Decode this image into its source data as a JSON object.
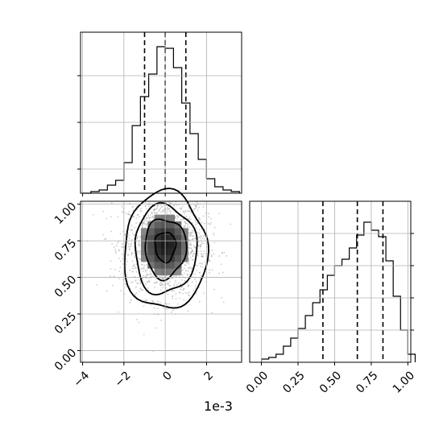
{
  "chart_data": {
    "type": "corner",
    "offset_text": "1e-3",
    "colors": {
      "line": "#000000",
      "grid": "#b0b0b0",
      "density_max": "#000000",
      "density_min": "#ffffff"
    },
    "grid": true,
    "panels": [
      {
        "id": "hist_param0",
        "type": "histogram-step",
        "x_scale": 0.001,
        "xlim": [
          -4.1,
          3.7
        ],
        "ylim": [
          0,
          1
        ],
        "bin_edges": [
          -4.0,
          -3.6,
          -3.2,
          -2.8,
          -2.4,
          -2.0,
          -1.6,
          -1.2,
          -0.8,
          -0.4,
          0.0,
          0.4,
          0.8,
          1.2,
          1.6,
          2.0,
          2.4,
          2.8,
          3.2,
          3.6
        ],
        "counts": [
          0.0,
          0.01,
          0.02,
          0.05,
          0.08,
          0.19,
          0.42,
          0.6,
          0.74,
          0.91,
          0.9,
          0.78,
          0.56,
          0.37,
          0.21,
          0.09,
          0.04,
          0.02,
          0.01
        ],
        "quantiles": [
          -1.0,
          0.0,
          1.0
        ],
        "yticks": [
          0.15,
          0.44,
          0.73
        ]
      },
      {
        "id": "hist_param1",
        "type": "histogram-step",
        "xlim": [
          -0.08,
          1.02
        ],
        "ylim": [
          0,
          1
        ],
        "bin_edges": [
          0.0,
          0.05,
          0.1,
          0.15,
          0.2,
          0.25,
          0.3,
          0.35,
          0.4,
          0.45,
          0.5,
          0.55,
          0.6,
          0.65,
          0.7,
          0.75,
          0.8,
          0.85,
          0.9,
          0.95,
          1.0,
          1.05
        ],
        "counts": [
          0.02,
          0.03,
          0.05,
          0.1,
          0.15,
          0.21,
          0.29,
          0.37,
          0.45,
          0.54,
          0.6,
          0.64,
          0.71,
          0.79,
          0.87,
          0.82,
          0.78,
          0.63,
          0.41,
          0.2,
          0.05
        ],
        "quantiles": [
          0.42,
          0.655,
          0.83
        ],
        "xticks": [
          0.0,
          0.25,
          0.5,
          0.75,
          1.0
        ],
        "xtick_labels": [
          "0.00",
          "0.25",
          "0.50",
          "0.75",
          "1.00"
        ],
        "yticks": [
          0.2,
          0.4,
          0.6,
          0.8
        ]
      },
      {
        "id": "joint",
        "type": "density-2d",
        "x_scale": 0.001,
        "xlim": [
          -4.1,
          3.7
        ],
        "ylim": [
          -0.08,
          1.02
        ],
        "xticks": [
          -4,
          -2,
          0,
          2
        ],
        "xtick_labels": [
          "−4",
          "−2",
          "0",
          "2"
        ],
        "yticks": [
          0.0,
          0.25,
          0.5,
          0.75,
          1.0
        ],
        "ytick_labels": [
          "0.00",
          "0.25",
          "0.50",
          "0.75",
          "1.00"
        ],
        "density_center": [
          0.0,
          0.72
        ],
        "density_spread": [
          1.0,
          0.18
        ],
        "contour_levels": [
          0.118,
          0.393,
          0.675,
          0.865
        ]
      }
    ]
  }
}
